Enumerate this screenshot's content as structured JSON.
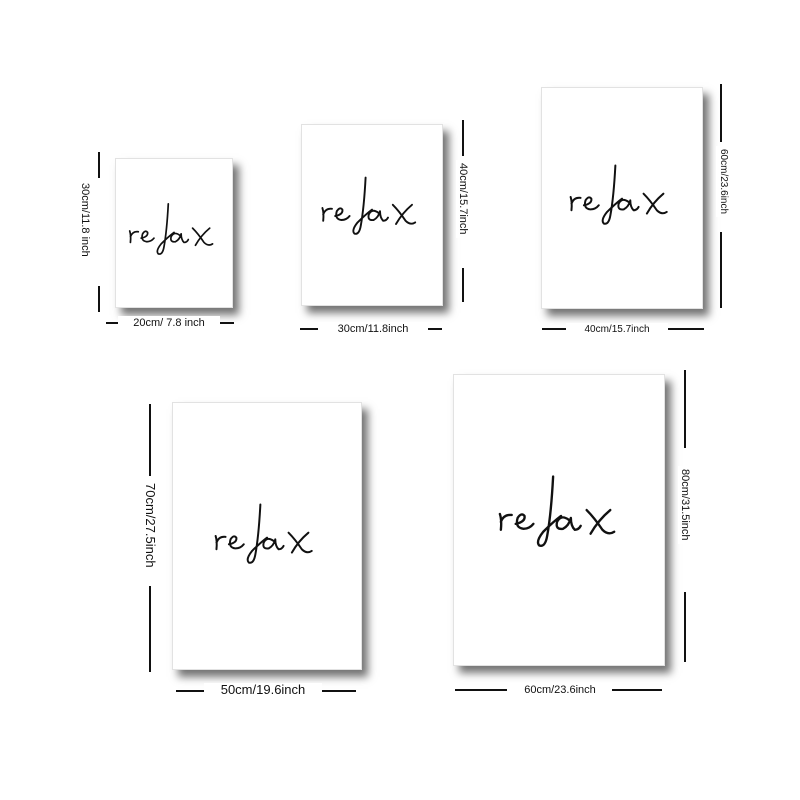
{
  "colors": {
    "background": "#ffffff",
    "ink": "#111111",
    "poster": "#ffffff"
  },
  "posters": [
    {
      "word": "relax",
      "width_label": "20cm/ 7.8 inch",
      "height_label": "30cm/11.8 inch"
    },
    {
      "word": "relax",
      "width_label": "30cm/11.8inch",
      "height_label": "40cm/15.7inch"
    },
    {
      "word": "relax",
      "width_label": "40cm/15.7inch",
      "height_label": "60cm/23.6inch"
    },
    {
      "word": "relax",
      "width_label": "50cm/19.6inch",
      "height_label": "70cm/27.5inch"
    },
    {
      "word": "relax",
      "width_label": "60cm/23.6inch",
      "height_label": "80cm/31.5inch"
    }
  ]
}
